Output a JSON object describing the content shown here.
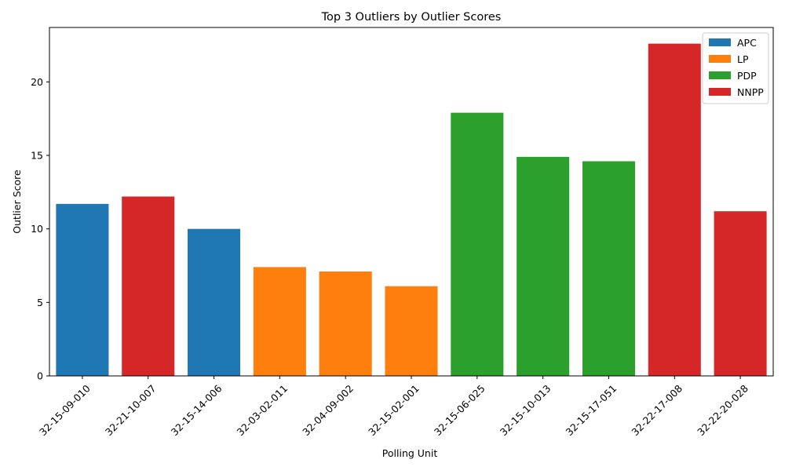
{
  "chart_data": {
    "type": "bar",
    "title": "Top 3 Outliers by Outlier Scores",
    "xlabel": "Polling Unit",
    "ylabel": "Outlier Score",
    "ylim": [
      0,
      23.7
    ],
    "yticks": [
      0,
      5,
      10,
      15,
      20
    ],
    "grid": false,
    "legend_position": "top-right",
    "series": [
      {
        "name": "APC",
        "color": "#1f77b4"
      },
      {
        "name": "LP",
        "color": "#ff7f0e"
      },
      {
        "name": "PDP",
        "color": "#2ca02c"
      },
      {
        "name": "NNPP",
        "color": "#d62728"
      }
    ],
    "categories": [
      "32-15-09-010",
      "32-21-10-007",
      "32-15-14-006",
      "32-03-02-011",
      "32-04-09-002",
      "32-15-02-001",
      "32-15-06-025",
      "32-15-10-013",
      "32-15-17-051",
      "32-22-17-008",
      "32-22-20-028"
    ],
    "bars": [
      {
        "category": "32-15-09-010",
        "series": "APC",
        "value": 11.7
      },
      {
        "category": "32-21-10-007",
        "series": "NNPP",
        "value": 12.2
      },
      {
        "category": "32-15-14-006",
        "series": "APC",
        "value": 10.0
      },
      {
        "category": "32-03-02-011",
        "series": "LP",
        "value": 7.4
      },
      {
        "category": "32-04-09-002",
        "series": "LP",
        "value": 7.1
      },
      {
        "category": "32-15-02-001",
        "series": "LP",
        "value": 6.1
      },
      {
        "category": "32-15-06-025",
        "series": "PDP",
        "value": 17.9
      },
      {
        "category": "32-15-10-013",
        "series": "PDP",
        "value": 14.9
      },
      {
        "category": "32-15-17-051",
        "series": "PDP",
        "value": 14.6
      },
      {
        "category": "32-22-17-008",
        "series": "NNPP",
        "value": 22.6
      },
      {
        "category": "32-22-20-028",
        "series": "NNPP",
        "value": 11.2
      }
    ]
  }
}
